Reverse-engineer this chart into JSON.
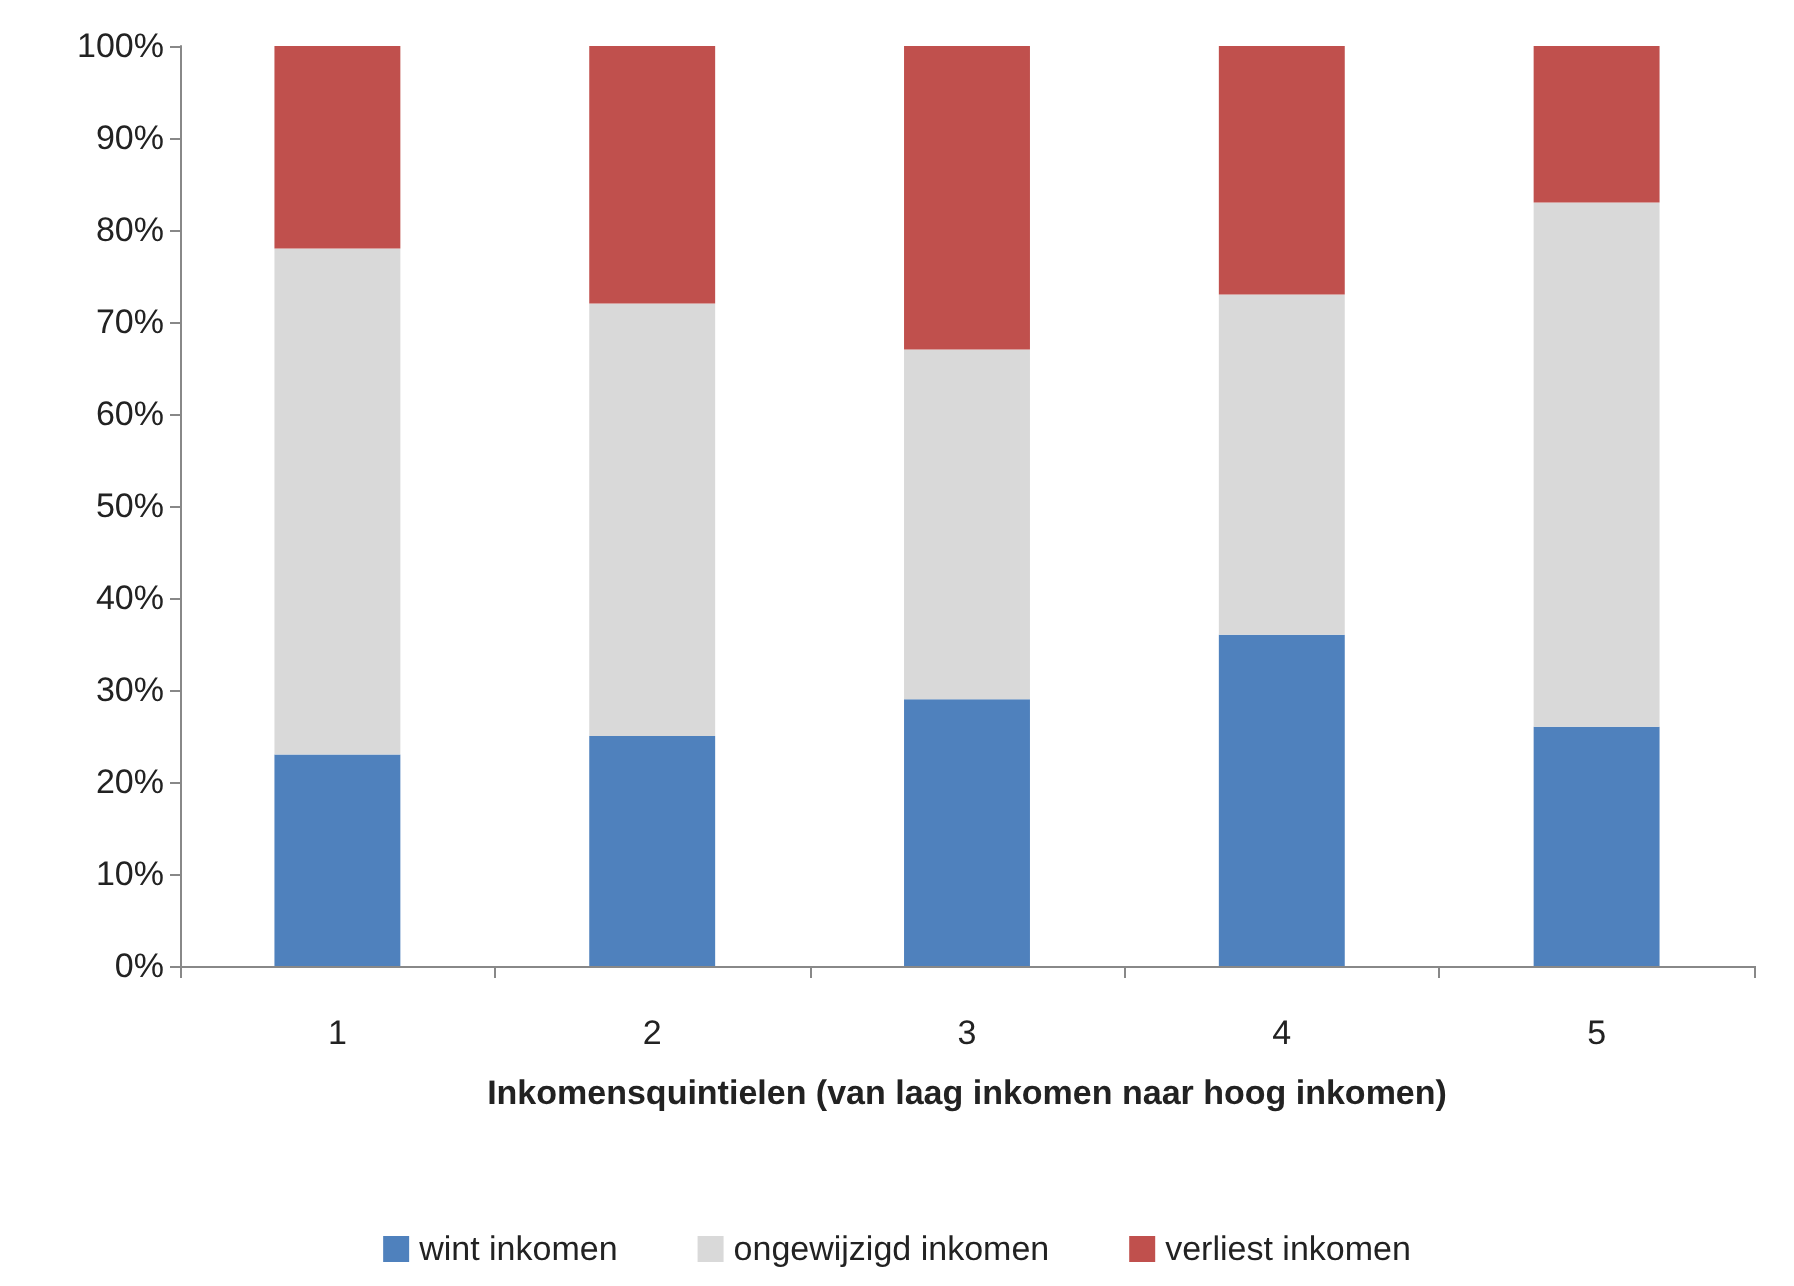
{
  "chart_data": {
    "type": "bar",
    "stacked": true,
    "xlabel": "Inkomensquintielen (van laag inkomen naar hoog inkomen)",
    "categories": [
      "1",
      "2",
      "3",
      "4",
      "5"
    ],
    "series": [
      {
        "name": "wint inkomen",
        "color": "#4f81bd",
        "values": [
          23,
          25,
          29,
          36,
          26
        ]
      },
      {
        "name": "ongewijzigd inkomen",
        "color": "#d9d9d9",
        "values": [
          55,
          47,
          38,
          37,
          57
        ]
      },
      {
        "name": "verliest inkomen",
        "color": "#c0504d",
        "values": [
          22,
          28,
          33,
          27,
          17
        ]
      }
    ],
    "ylim": [
      0,
      100
    ],
    "yticks": [
      {
        "value": 0,
        "label": "0%"
      },
      {
        "value": 10,
        "label": "10%"
      },
      {
        "value": 20,
        "label": "20%"
      },
      {
        "value": 30,
        "label": "30%"
      },
      {
        "value": 40,
        "label": "40%"
      },
      {
        "value": 50,
        "label": "50%"
      },
      {
        "value": 60,
        "label": "60%"
      },
      {
        "value": 70,
        "label": "70%"
      },
      {
        "value": 80,
        "label": "80%"
      },
      {
        "value": 90,
        "label": "90%"
      },
      {
        "value": 100,
        "label": "100%"
      }
    ],
    "grid": false,
    "legend": "bottom"
  }
}
